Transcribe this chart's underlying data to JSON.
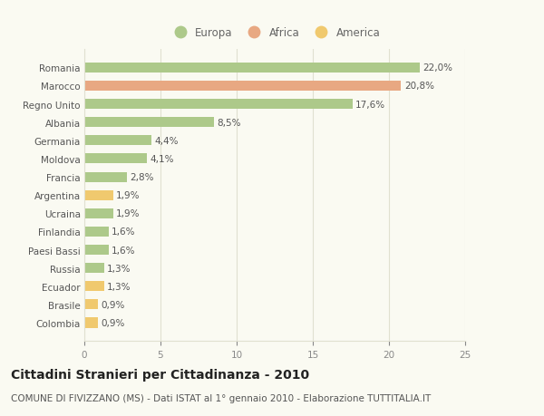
{
  "countries": [
    "Romania",
    "Marocco",
    "Regno Unito",
    "Albania",
    "Germania",
    "Moldova",
    "Francia",
    "Argentina",
    "Ucraina",
    "Finlandia",
    "Paesi Bassi",
    "Russia",
    "Ecuador",
    "Brasile",
    "Colombia"
  ],
  "values": [
    22.0,
    20.8,
    17.6,
    8.5,
    4.4,
    4.1,
    2.8,
    1.9,
    1.9,
    1.6,
    1.6,
    1.3,
    1.3,
    0.9,
    0.9
  ],
  "labels": [
    "22,0%",
    "20,8%",
    "17,6%",
    "8,5%",
    "4,4%",
    "4,1%",
    "2,8%",
    "1,9%",
    "1,9%",
    "1,6%",
    "1,6%",
    "1,3%",
    "1,3%",
    "0,9%",
    "0,9%"
  ],
  "continents": [
    "Europa",
    "Africa",
    "Europa",
    "Europa",
    "Europa",
    "Europa",
    "Europa",
    "America",
    "Europa",
    "Europa",
    "Europa",
    "Europa",
    "America",
    "America",
    "America"
  ],
  "colors": {
    "Europa": "#adc98a",
    "Africa": "#e8a882",
    "America": "#f0c96e"
  },
  "xlim": [
    0,
    25
  ],
  "xticks": [
    0,
    5,
    10,
    15,
    20,
    25
  ],
  "title": "Cittadini Stranieri per Cittadinanza - 2010",
  "subtitle": "COMUNE DI FIVIZZANO (MS) - Dati ISTAT al 1° gennaio 2010 - Elaborazione TUTTITALIA.IT",
  "background_color": "#fafaf2",
  "grid_color": "#e0e0d0",
  "bar_height": 0.55,
  "title_fontsize": 10,
  "subtitle_fontsize": 7.5,
  "label_fontsize": 7.5,
  "tick_fontsize": 7.5,
  "legend_fontsize": 8.5
}
